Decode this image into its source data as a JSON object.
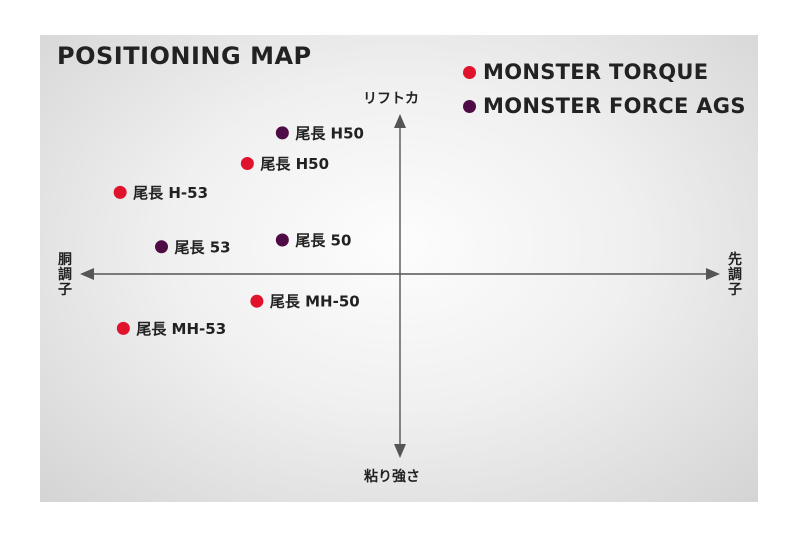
{
  "chart_data": {
    "type": "scatter",
    "title": "POSITIONING MAP",
    "axes": {
      "top_label": "リフトカ",
      "bottom_label": "粘り強さ",
      "left_label": "胴調子",
      "right_label": "先調子"
    },
    "xlim": [
      -1,
      1
    ],
    "ylim": [
      -1,
      1
    ],
    "grid": false,
    "legend_placement": "top-right",
    "series": [
      {
        "name": "MONSTER TORQUE",
        "color": "#e0122c",
        "points": [
          {
            "label": "尾長 H50",
            "x": -0.48,
            "y": 0.65
          },
          {
            "label": "尾長 H-53",
            "x": -0.88,
            "y": 0.48
          },
          {
            "label": "尾長 MH-50",
            "x": -0.45,
            "y": -0.16
          },
          {
            "label": "尾長 MH-53",
            "x": -0.87,
            "y": -0.32
          }
        ]
      },
      {
        "name": "MONSTER FORCE AGS",
        "color": "#4e0b45",
        "points": [
          {
            "label": "尾長 H50",
            "x": -0.37,
            "y": 0.83
          },
          {
            "label": "尾長 53",
            "x": -0.75,
            "y": 0.16
          },
          {
            "label": "尾長 50",
            "x": -0.37,
            "y": 0.2
          }
        ]
      }
    ]
  }
}
